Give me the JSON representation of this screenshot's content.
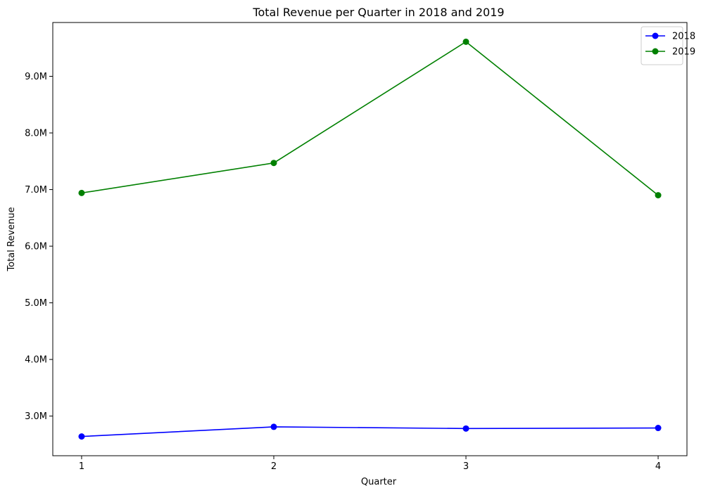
{
  "chart_data": {
    "type": "line",
    "title": "Total Revenue per Quarter in 2018 and 2019",
    "xlabel": "Quarter",
    "ylabel": "Total Revenue",
    "x": [
      1,
      2,
      3,
      4
    ],
    "x_tick_labels": [
      "1",
      "2",
      "3",
      "4"
    ],
    "y_ticks": [
      3000000,
      4000000,
      5000000,
      6000000,
      7000000,
      8000000,
      9000000
    ],
    "y_tick_labels": [
      "3.0M",
      "4.0M",
      "5.0M",
      "6.0M",
      "7.0M",
      "8.0M",
      "9.0M"
    ],
    "ylim": [
      2300000,
      9950000
    ],
    "xlim": [
      0.85,
      4.15
    ],
    "grid": false,
    "legend_position": "upper-right",
    "series": [
      {
        "name": "2018",
        "color": "#0000ff",
        "values": [
          2640000,
          2810000,
          2780000,
          2790000
        ]
      },
      {
        "name": "2019",
        "color": "#008000",
        "values": [
          6940000,
          7470000,
          9610000,
          6900000
        ]
      }
    ]
  }
}
